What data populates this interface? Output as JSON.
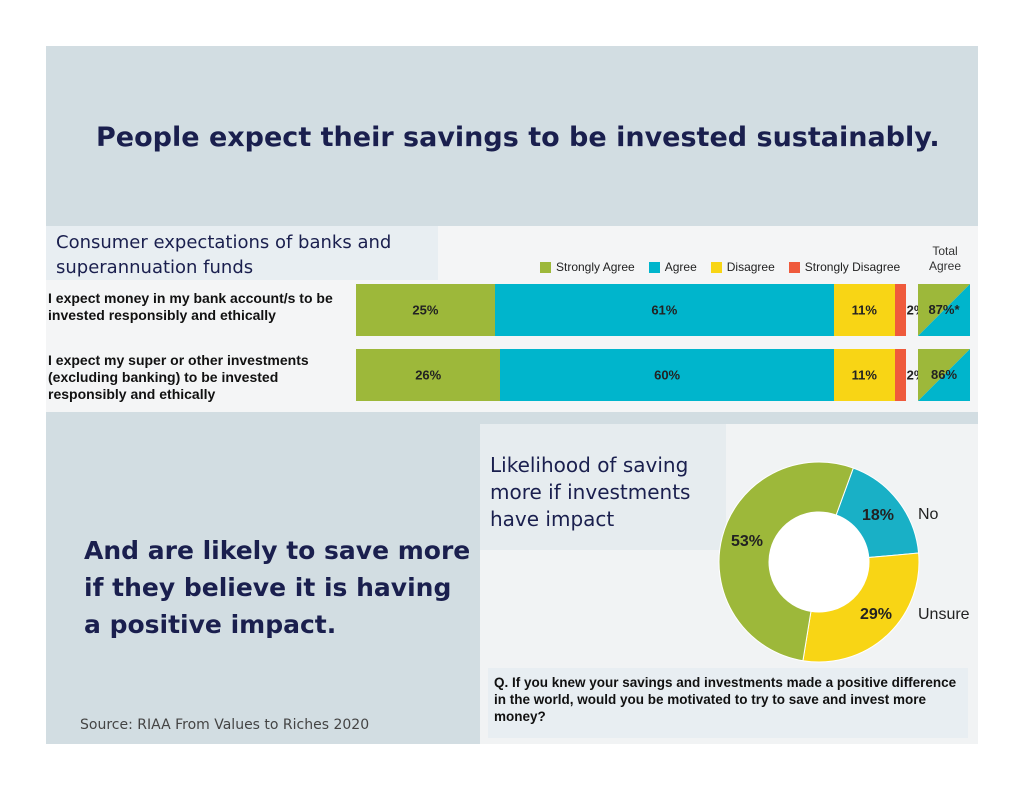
{
  "headline": "People expect their savings to be invested sustainably.",
  "bar_section": {
    "title_line1": "Consumer expectations of banks and",
    "title_line2": "superannuation funds",
    "total_header_line1": "Total",
    "total_header_line2": "Agree"
  },
  "colors": {
    "strongly_agree": "#9db83a",
    "agree": "#00b5cc",
    "disagree": "#f8d515",
    "strongly_disagree": "#ef5a3c",
    "unsure": "#f8d515",
    "no": "#19b0c6",
    "yes": "#9db83a"
  },
  "sub_headline": "And are likely to save more if they believe it is having a positive impact.",
  "donut_section": {
    "title_line1": "Likelihood of saving",
    "title_line2": "more if investments",
    "title_line3": "have impact",
    "question": "Q. If you knew your savings and investments made a positive difference in the world, would you be motivated to try to save and invest more money?"
  },
  "source": "Source: RIAA From Values to Riches 2020",
  "chart_data": [
    {
      "type": "bar",
      "orientation": "horizontal-stacked",
      "title": "Consumer expectations of banks and superannuation funds",
      "legend": [
        "Strongly Agree",
        "Agree",
        "Disagree",
        "Strongly Disagree"
      ],
      "legend_placement": "top-right",
      "categories": [
        "I expect money in my bank account/s to be invested responsibly and ethically",
        "I expect my super or other investments (excluding banking) to be invested responsibly and ethically"
      ],
      "series": [
        {
          "name": "Strongly Agree",
          "values": [
            25,
            26
          ],
          "labels": [
            "25%",
            "26%"
          ]
        },
        {
          "name": "Agree",
          "values": [
            61,
            60
          ],
          "labels": [
            "61%",
            "60%"
          ]
        },
        {
          "name": "Disagree",
          "values": [
            11,
            11
          ],
          "labels": [
            "11%",
            "11%"
          ]
        },
        {
          "name": "Strongly Disagree",
          "values": [
            2,
            2
          ],
          "labels": [
            "2%",
            "2%"
          ]
        }
      ],
      "total_agree": [
        "87%*",
        "86%"
      ]
    },
    {
      "type": "pie",
      "variant": "donut",
      "title": "Likelihood of saving more if investments have impact",
      "slices": [
        {
          "name": "",
          "value": 53,
          "label": "53%"
        },
        {
          "name": "No",
          "value": 18,
          "label": "18%"
        },
        {
          "name": "Unsure",
          "value": 29,
          "label": "29%"
        }
      ]
    }
  ]
}
